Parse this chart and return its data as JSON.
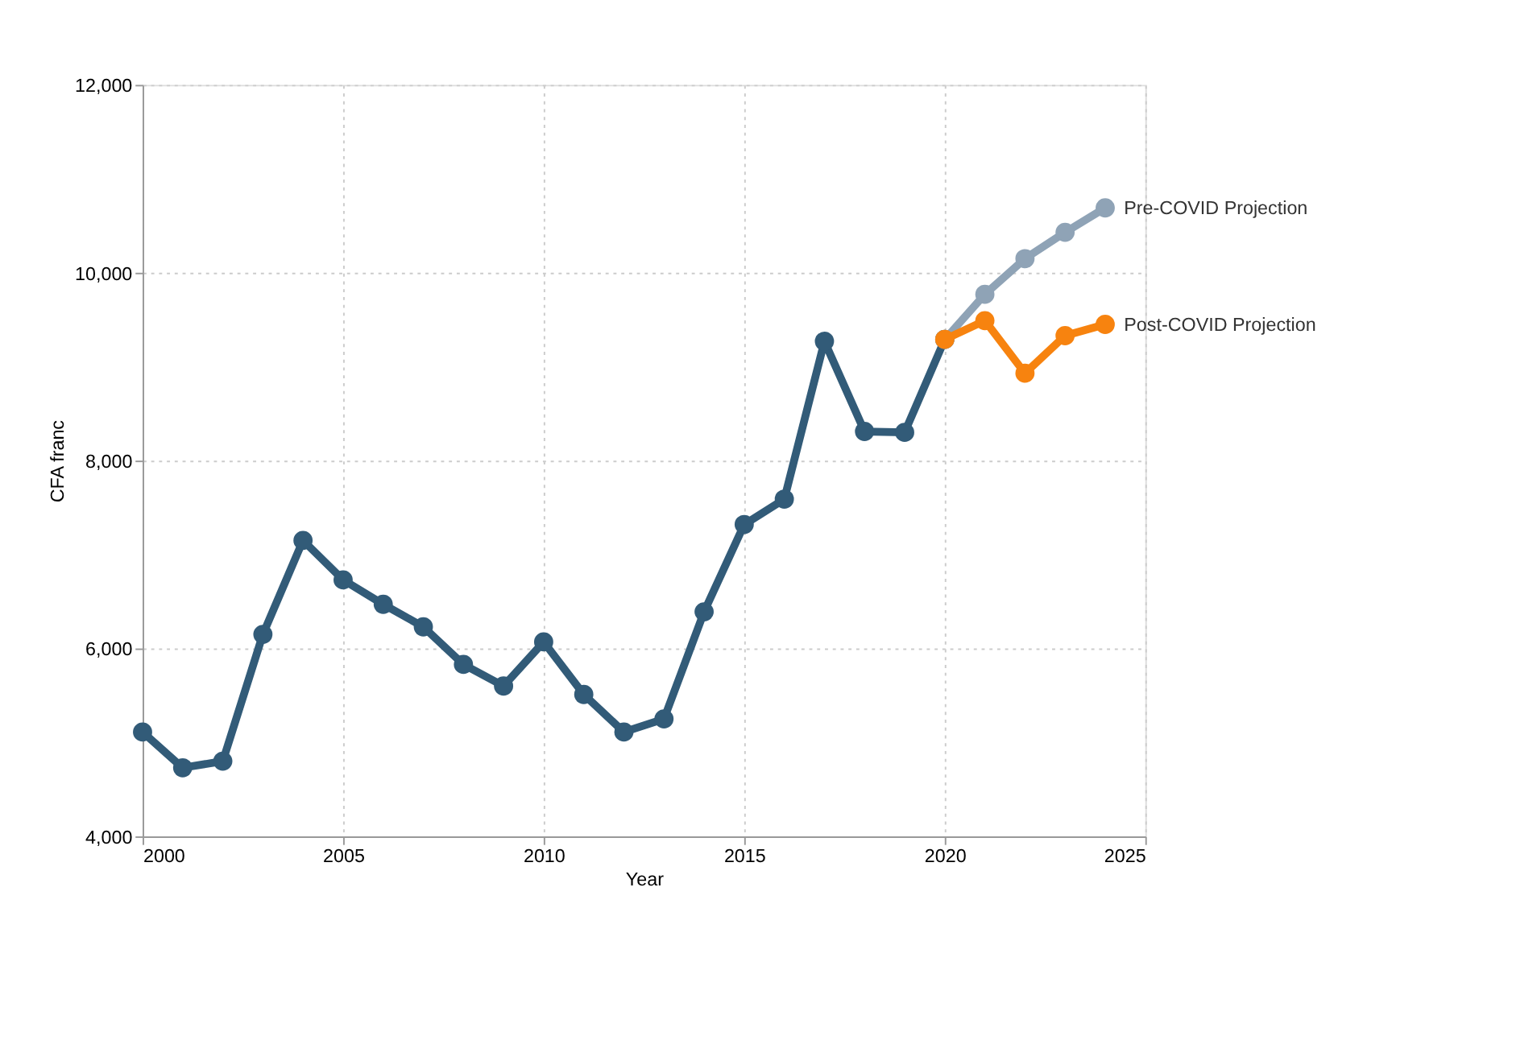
{
  "chart_data": {
    "type": "line",
    "xlabel": "Year",
    "ylabel": "CFA franc",
    "xlim": [
      2000,
      2025
    ],
    "xticks": [
      2000,
      2005,
      2010,
      2015,
      2020,
      2025
    ],
    "ylim": [
      4000,
      12000
    ],
    "yticks": [
      {
        "value": 4000,
        "label": "4,000"
      },
      {
        "value": 6000,
        "label": "6,000"
      },
      {
        "value": 8000,
        "label": "8,000"
      },
      {
        "value": 10000,
        "label": "10,000"
      },
      {
        "value": 12000,
        "label": "12,000"
      }
    ],
    "grid": true,
    "legend": false,
    "marker": "circle",
    "line_style": "solid",
    "series": [
      {
        "color": "#325b78",
        "x": [
          2000,
          2001,
          2002,
          2003,
          2004,
          2005,
          2006,
          2007,
          2008,
          2009,
          2010,
          2011,
          2012,
          2013,
          2014,
          2015,
          2016,
          2017,
          2018,
          2019,
          2020
        ],
        "values": [
          5110,
          4730,
          4800,
          6150,
          7150,
          6730,
          6470,
          6230,
          5830,
          5600,
          6070,
          5510,
          5110,
          5250,
          6390,
          7320,
          7590,
          9270,
          8310,
          8300,
          9290
        ]
      },
      {
        "name": "Pre-COVID Projection",
        "color": "#8fa3b6",
        "x": [
          2020,
          2021,
          2022,
          2023,
          2024
        ],
        "values": [
          9290,
          9770,
          10150,
          10430,
          10690
        ]
      },
      {
        "name": "Post-COVID Projection",
        "color": "#f7830f",
        "x": [
          2020,
          2021,
          2022,
          2023,
          2024
        ],
        "values": [
          9290,
          9490,
          8930,
          9330,
          9450
        ]
      }
    ]
  }
}
